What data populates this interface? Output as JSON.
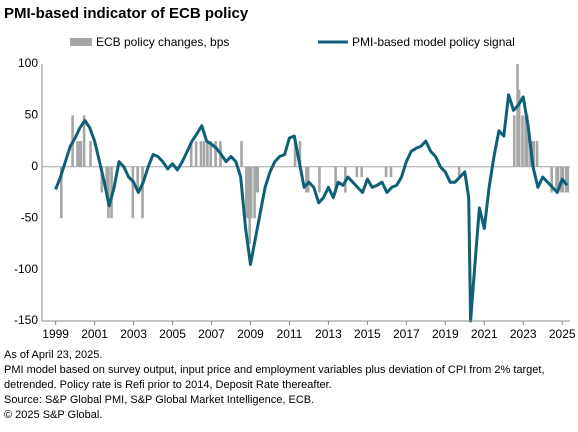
{
  "chart_data": {
    "type": "combo",
    "title": "PMI-based indicator of ECB policy",
    "xlim": [
      1998.3,
      2025.4
    ],
    "xticks": [
      1999,
      2001,
      2003,
      2005,
      2007,
      2009,
      2011,
      2013,
      2015,
      2017,
      2019,
      2021,
      2023,
      2025
    ],
    "ylim": [
      -150,
      100
    ],
    "yticks": [
      100,
      50,
      0,
      -50,
      -100,
      -150
    ],
    "series": [
      {
        "name": "ECB policy changes, bps",
        "type": "bar",
        "color": "#a6a6a6",
        "x": [
          1999.29,
          1999.87,
          2000.12,
          2000.21,
          2000.29,
          2000.46,
          2000.79,
          2001.37,
          2001.62,
          2001.71,
          2001.87,
          2002.96,
          2003.21,
          2003.46,
          2005.96,
          2006.21,
          2006.46,
          2006.62,
          2006.79,
          2006.96,
          2007.21,
          2007.46,
          2008.54,
          2008.79,
          2008.87,
          2008.96,
          2009.04,
          2009.21,
          2009.29,
          2009.37,
          2011.29,
          2011.54,
          2011.87,
          2011.96,
          2012.54,
          2013.37,
          2013.87,
          2014.46,
          2014.71,
          2015.96,
          2016.21,
          2019.71,
          2022.54,
          2022.71,
          2022.79,
          2022.96,
          2023.12,
          2023.21,
          2023.37,
          2023.46,
          2023.54,
          2023.71,
          2024.46,
          2024.71,
          2024.79,
          2024.96,
          2025.04,
          2025.21,
          2025.29
        ],
        "values": [
          -50,
          50,
          25,
          25,
          25,
          50,
          25,
          -25,
          -25,
          -50,
          -50,
          -50,
          -25,
          -50,
          25,
          25,
          25,
          25,
          25,
          25,
          25,
          25,
          25,
          -50,
          -50,
          -75,
          -50,
          -50,
          -25,
          -25,
          25,
          25,
          -25,
          -25,
          -25,
          -25,
          -25,
          -10,
          -10,
          -10,
          -10,
          -10,
          50,
          100,
          75,
          50,
          50,
          50,
          25,
          25,
          25,
          25,
          -25,
          -25,
          -25,
          -25,
          -25,
          -25,
          -25
        ]
      },
      {
        "name": "PMI-based model policy signal",
        "type": "line",
        "color": "#0e6078",
        "x": [
          1999.0,
          1999.25,
          1999.5,
          1999.75,
          2000.0,
          2000.25,
          2000.5,
          2000.75,
          2001.0,
          2001.25,
          2001.5,
          2001.75,
          2002.0,
          2002.25,
          2002.5,
          2002.75,
          2003.0,
          2003.25,
          2003.5,
          2003.75,
          2004.0,
          2004.25,
          2004.5,
          2004.75,
          2005.0,
          2005.25,
          2005.5,
          2005.75,
          2006.0,
          2006.25,
          2006.5,
          2006.75,
          2007.0,
          2007.25,
          2007.5,
          2007.75,
          2008.0,
          2008.25,
          2008.5,
          2008.75,
          2009.0,
          2009.25,
          2009.5,
          2009.75,
          2010.0,
          2010.25,
          2010.5,
          2010.75,
          2011.0,
          2011.25,
          2011.5,
          2011.75,
          2012.0,
          2012.25,
          2012.5,
          2012.75,
          2013.0,
          2013.25,
          2013.5,
          2013.75,
          2014.0,
          2014.25,
          2014.5,
          2014.75,
          2015.0,
          2015.25,
          2015.5,
          2015.75,
          2016.0,
          2016.25,
          2016.5,
          2016.75,
          2017.0,
          2017.25,
          2017.5,
          2017.75,
          2018.0,
          2018.25,
          2018.5,
          2018.75,
          2019.0,
          2019.25,
          2019.5,
          2019.75,
          2020.0,
          2020.2,
          2020.3,
          2020.5,
          2020.75,
          2021.0,
          2021.25,
          2021.5,
          2021.75,
          2022.0,
          2022.25,
          2022.5,
          2022.75,
          2023.0,
          2023.25,
          2023.5,
          2023.75,
          2024.0,
          2024.25,
          2024.5,
          2024.75,
          2025.0,
          2025.25
        ],
        "values": [
          -22,
          -10,
          5,
          20,
          28,
          38,
          45,
          38,
          25,
          5,
          -15,
          -38,
          -20,
          5,
          0,
          -10,
          -15,
          -25,
          -15,
          0,
          12,
          10,
          5,
          -2,
          3,
          -3,
          5,
          15,
          25,
          32,
          40,
          25,
          22,
          18,
          12,
          5,
          10,
          5,
          -10,
          -60,
          -95,
          -70,
          -45,
          -20,
          -5,
          5,
          10,
          12,
          28,
          30,
          5,
          -20,
          -15,
          -20,
          -35,
          -30,
          -20,
          -30,
          -15,
          -18,
          -10,
          -15,
          -20,
          -25,
          -12,
          -20,
          -18,
          -15,
          -25,
          -20,
          -18,
          -10,
          5,
          15,
          18,
          20,
          25,
          15,
          10,
          0,
          -5,
          -15,
          -15,
          -10,
          -5,
          -30,
          -150,
          -100,
          -40,
          -60,
          -20,
          10,
          35,
          30,
          70,
          55,
          60,
          68,
          40,
          0,
          -20,
          -10,
          -15,
          -20,
          -25,
          -12,
          -18
        ]
      }
    ],
    "notes": [
      "As of April 23, 2025.",
      "PMI model based on survey output, input price and employment variables plus deviation of CPI from 2% target,",
      "detrended. Policy rate is Refi prior to 2014, Deposit Rate thereafter.",
      "Source: S&P Global PMI, S&P Global Market Intelligence, ECB.",
      "© 2025 S&P Global."
    ]
  }
}
